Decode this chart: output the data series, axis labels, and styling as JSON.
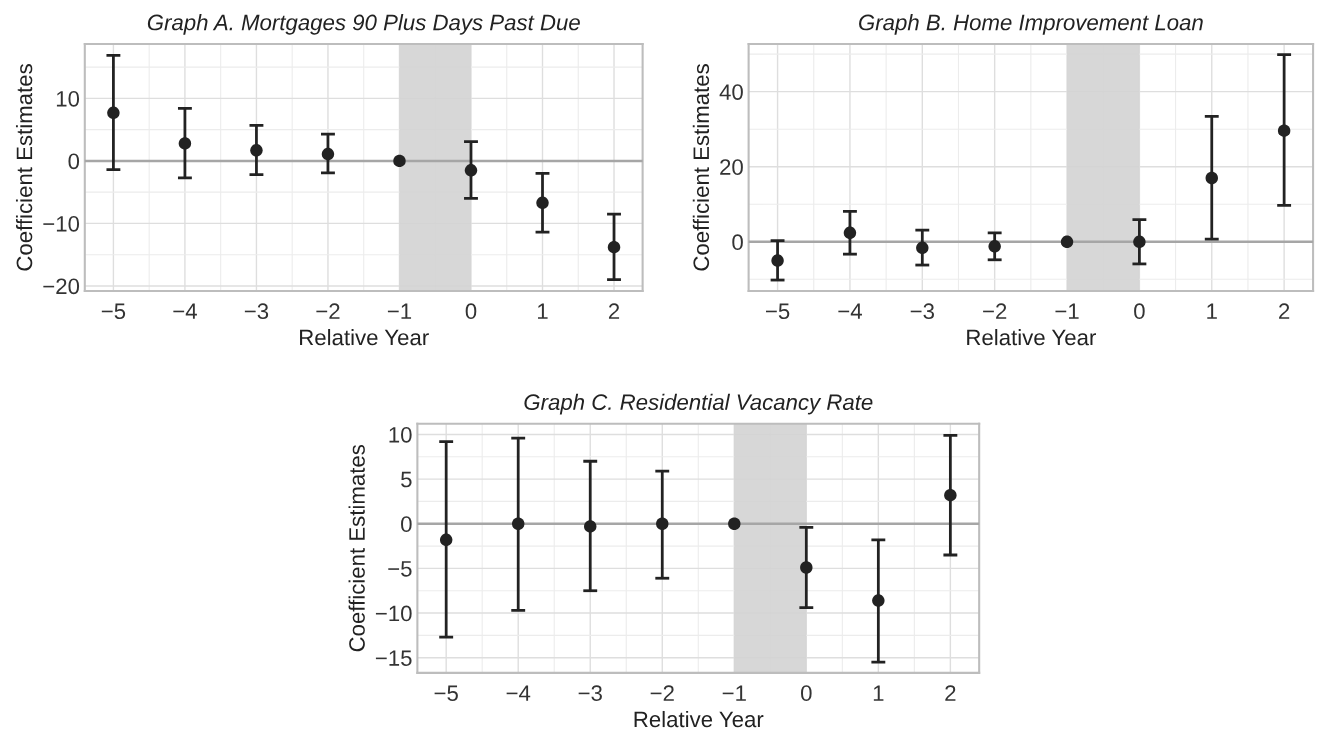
{
  "chart_data": [
    {
      "type": "scatter",
      "title": "Graph A. Mortgages 90 Plus Days Past Due",
      "xlabel": "Relative Year",
      "ylabel": "Coefficient Estimates",
      "x": [
        -5,
        -4,
        -3,
        -2,
        -1,
        0,
        1,
        2
      ],
      "series": [
        {
          "color": "#222222",
          "values": [
            7.7,
            2.8,
            1.7,
            1.1,
            0,
            -1.5,
            -6.7,
            -13.8
          ],
          "errors": [
            [
              -1.4,
              16.9
            ],
            [
              -2.7,
              8.4
            ],
            [
              -2.2,
              5.7
            ],
            [
              -1.9,
              4.3
            ],
            null,
            [
              -6.0,
              3.1
            ],
            [
              -11.4,
              -2.0
            ],
            [
              -19.0,
              -8.5
            ]
          ]
        }
      ],
      "xlim": [
        -5.4,
        2.4
      ],
      "xticks": [
        {
          "value": -5,
          "label": "−5"
        },
        {
          "value": -4,
          "label": "−4"
        },
        {
          "value": -3,
          "label": "−3"
        },
        {
          "value": -2,
          "label": "−2"
        },
        {
          "value": -1,
          "label": "−1"
        },
        0,
        1,
        2
      ],
      "ylim": [
        -20.8,
        18.7
      ],
      "yticks": [
        {
          "value": -20,
          "label": "−20"
        },
        {
          "value": -10,
          "label": "−10"
        },
        0,
        10
      ],
      "bands": [
        {
          "axis": "x",
          "from": -1,
          "to": 0,
          "color": "#d3d3d3"
        }
      ],
      "ref_lines": [
        {
          "axis": "y",
          "value": 0,
          "color": "#a6a6a6"
        }
      ],
      "grid": true,
      "marker": "circle"
    },
    {
      "type": "scatter",
      "title": "Graph B. Home Improvement Loan",
      "xlabel": "Relative Year",
      "ylabel": "Coefficient Estimates",
      "x": [
        -5,
        -4,
        -3,
        -2,
        -1,
        0,
        1,
        2
      ],
      "series": [
        {
          "color": "#222222",
          "values": [
            -5.0,
            2.4,
            -1.6,
            -1.2,
            0,
            0,
            17.0,
            29.6
          ],
          "errors": [
            [
              -10.2,
              0.3
            ],
            [
              -3.3,
              8.1
            ],
            [
              -6.2,
              3.1
            ],
            [
              -4.8,
              2.4
            ],
            null,
            [
              -5.9,
              5.9
            ],
            [
              0.7,
              33.4
            ],
            [
              9.7,
              49.9
            ]
          ]
        }
      ],
      "xlim": [
        -5.4,
        2.4
      ],
      "xticks": [
        {
          "value": -5,
          "label": "−5"
        },
        {
          "value": -4,
          "label": "−4"
        },
        {
          "value": -3,
          "label": "−3"
        },
        {
          "value": -2,
          "label": "−2"
        },
        {
          "value": -1,
          "label": "−1"
        },
        0,
        1,
        2
      ],
      "ylim": [
        -13.1,
        52.7
      ],
      "yticks": [
        0,
        20,
        40
      ],
      "bands": [
        {
          "axis": "x",
          "from": -1,
          "to": 0,
          "color": "#d3d3d3"
        }
      ],
      "ref_lines": [
        {
          "axis": "y",
          "value": 0,
          "color": "#a6a6a6"
        }
      ],
      "grid": true,
      "marker": "circle"
    },
    {
      "type": "scatter",
      "title": "Graph C. Residential Vacancy Rate",
      "xlabel": "Relative Year",
      "ylabel": "Coefficient Estimates",
      "x": [
        -5,
        -4,
        -3,
        -2,
        -1,
        0,
        1,
        2
      ],
      "series": [
        {
          "color": "#222222",
          "values": [
            -1.8,
            0,
            -0.3,
            0,
            0,
            -4.9,
            -8.6,
            3.2
          ],
          "errors": [
            [
              -12.7,
              9.2
            ],
            [
              -9.7,
              9.6
            ],
            [
              -7.5,
              7.0
            ],
            [
              -6.1,
              5.9
            ],
            null,
            [
              -9.4,
              -0.4
            ],
            [
              -15.5,
              -1.8
            ],
            [
              -3.5,
              9.9
            ]
          ]
        }
      ],
      "xlim": [
        -5.4,
        2.4
      ],
      "xticks": [
        {
          "value": -5,
          "label": "−5"
        },
        {
          "value": -4,
          "label": "−4"
        },
        {
          "value": -3,
          "label": "−3"
        },
        {
          "value": -2,
          "label": "−2"
        },
        {
          "value": -1,
          "label": "−1"
        },
        0,
        1,
        2
      ],
      "ylim": [
        -16.7,
        11.2
      ],
      "yticks": [
        {
          "value": -15,
          "label": "−15"
        },
        {
          "value": -10,
          "label": "−10"
        },
        {
          "value": -5,
          "label": "−5"
        },
        0,
        5,
        10
      ],
      "bands": [
        {
          "axis": "x",
          "from": -1,
          "to": 0,
          "color": "#d3d3d3"
        }
      ],
      "ref_lines": [
        {
          "axis": "y",
          "value": 0,
          "color": "#a6a6a6"
        }
      ],
      "grid": true,
      "marker": "circle"
    }
  ]
}
